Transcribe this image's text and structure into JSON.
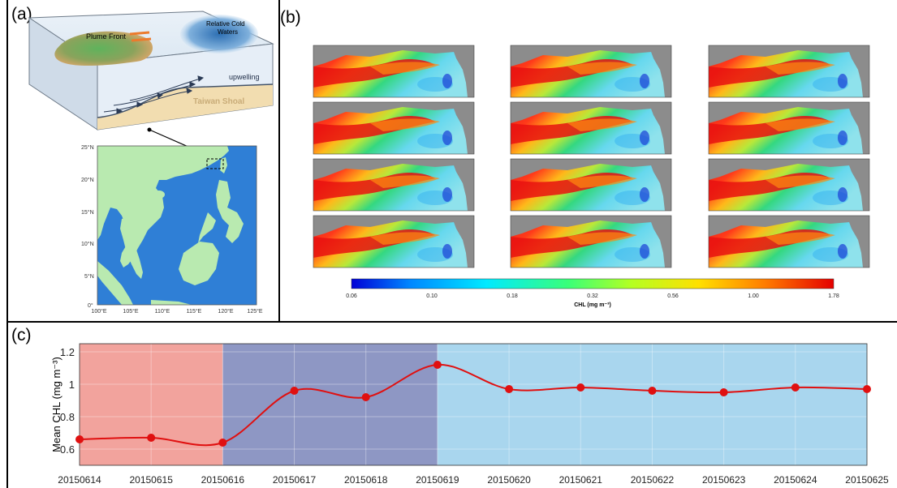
{
  "panels": {
    "a": "(a)",
    "b": "(b)",
    "c": "(c)"
  },
  "schematic": {
    "plume_front": "Plume Front",
    "cold_waters_line1": "Relative Cold",
    "cold_waters_line2": "Waters",
    "upwelling": "upwelling",
    "shoal": "Taiwan Shoal"
  },
  "map": {
    "lat_ticks": [
      "25°N",
      "20°N",
      "15°N",
      "10°N",
      "5°N",
      "0°"
    ],
    "lon_ticks": [
      "100°E",
      "105°E",
      "110°E",
      "115°E",
      "120°E",
      "125°E"
    ]
  },
  "colorbar": {
    "ticks": [
      "0.06",
      "0.10",
      "0.18",
      "0.32",
      "0.56",
      "1.00",
      "1.78"
    ],
    "label": "CHL (mg m⁻³)"
  },
  "colors": {
    "pink_band": "#f2a39d",
    "purple_band": "#8e97c4",
    "blue_band": "#a9d6ee",
    "line": "#e01010",
    "land_gray": "#8c8c8c",
    "ocean_map": "#2f7fd6",
    "land_map": "#b9eab0"
  },
  "chart_data": {
    "type": "line",
    "title": "",
    "xlabel": "",
    "ylabel": "Mean CHL (mg m⁻³)",
    "ylim": [
      0.5,
      1.25
    ],
    "y_ticks": [
      "0.6",
      "0.8",
      "1",
      "1.2"
    ],
    "categories": [
      "20150614",
      "20150615",
      "20150616",
      "20150617",
      "20150618",
      "20150619",
      "20150620",
      "20150621",
      "20150622",
      "20150623",
      "20150624",
      "20150625"
    ],
    "values": [
      0.66,
      0.67,
      0.64,
      0.96,
      0.92,
      1.12,
      0.97,
      0.98,
      0.96,
      0.95,
      0.98,
      0.97
    ],
    "shaded_periods": [
      {
        "from": "20150614",
        "to": "20150616",
        "color": "#f2a39d"
      },
      {
        "from": "20150616",
        "to": "20150619",
        "color": "#8e97c4"
      },
      {
        "from": "20150619",
        "to": "20150625",
        "color": "#a9d6ee"
      }
    ],
    "grid": true
  }
}
